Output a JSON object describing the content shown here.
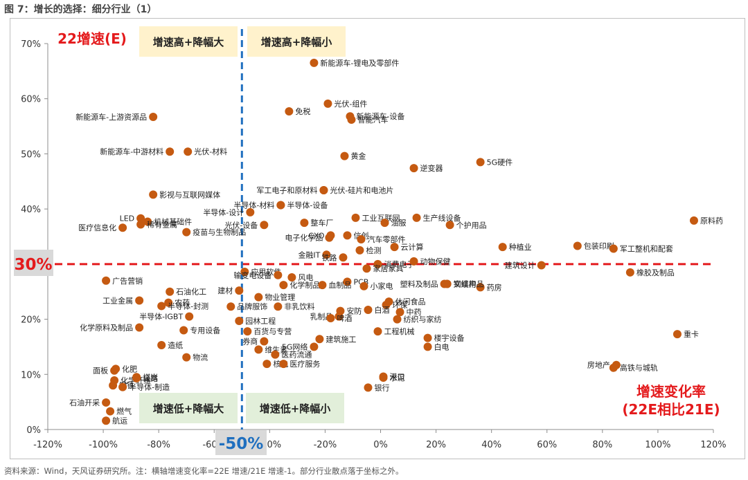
{
  "figure_title": "图 7：增长的选择：细分行业（1）",
  "footer": "资料来源：Wind，天风证券研究所。注：横轴增速变化率=22E 增速/21E 增速-1。部分行业散点落于坐标之外。",
  "colors": {
    "point": "#c55a11",
    "reference": "#e41a1c",
    "vline": "#1f6fbf",
    "yellow": "#fff2cc",
    "green": "#e2efda"
  },
  "chart_data": {
    "type": "scatter",
    "title": "增长的选择：细分行业（1）",
    "ylabel": "22增速(E)",
    "xlabel": "增速变化率",
    "xlabel_sub": "(22E相比21E)",
    "xlim": [
      -1.2,
      1.2
    ],
    "ylim": [
      0,
      0.7
    ],
    "x_ticks": [
      -1.2,
      -1.0,
      -0.8,
      -0.6,
      -0.4,
      -0.2,
      0,
      0.2,
      0.4,
      0.6,
      0.8,
      1.0,
      1.2
    ],
    "x_tick_labels": [
      "-120%",
      "-100%",
      "-80%",
      "-60%",
      "-40%",
      "-20%",
      "0%",
      "20%",
      "40%",
      "60%",
      "80%",
      "100%",
      "120%"
    ],
    "y_ticks": [
      0,
      0.1,
      0.2,
      0.3,
      0.4,
      0.5,
      0.6,
      0.7
    ],
    "y_tick_labels": [
      "0%",
      "10%",
      "20%",
      "30%",
      "40%",
      "50%",
      "60%",
      "70%"
    ],
    "hline": {
      "value": 0.3,
      "label": "30%"
    },
    "vline": {
      "value": -0.5,
      "label": "-50%"
    },
    "quadrants": {
      "top_left": "增速高+降幅大",
      "top_right": "增速高+降幅小",
      "bottom_left": "增速低+降幅大",
      "bottom_right": "增速低+降幅小"
    },
    "points": [
      {
        "name": "新能源车-锂电及零部件",
        "x": -0.24,
        "y": 0.665,
        "label_side": "right"
      },
      {
        "name": "光伏-组件",
        "x": -0.19,
        "y": 0.591,
        "label_side": "right"
      },
      {
        "name": "免税",
        "x": -0.33,
        "y": 0.577,
        "label_side": "right"
      },
      {
        "name": "新能源车-设备",
        "x": -0.11,
        "y": 0.568,
        "label_side": "right"
      },
      {
        "name": "智能汽车",
        "x": -0.105,
        "y": 0.562,
        "label_side": "right"
      },
      {
        "name": "新能源车-上游资源品",
        "x": -0.82,
        "y": 0.567,
        "label_side": "left"
      },
      {
        "name": "新能源车-中游材料",
        "x": -0.76,
        "y": 0.504,
        "label_side": "left"
      },
      {
        "name": "光伏-材料",
        "x": -0.695,
        "y": 0.504,
        "label_side": "right"
      },
      {
        "name": "黄金",
        "x": -0.13,
        "y": 0.496,
        "label_side": "right"
      },
      {
        "name": "5G硬件",
        "x": 0.36,
        "y": 0.485,
        "label_side": "right"
      },
      {
        "name": "逆变器",
        "x": 0.12,
        "y": 0.474,
        "label_side": "right"
      },
      {
        "name": "光伏-硅片和电池片",
        "x": -0.205,
        "y": 0.434,
        "label_side": "right"
      },
      {
        "name": "军工电子和原材料",
        "x": -0.205,
        "y": 0.434,
        "label_side": "left"
      },
      {
        "name": "影视与互联网媒体",
        "x": -0.82,
        "y": 0.426,
        "label_side": "right"
      },
      {
        "name": "半导体-材料",
        "x": -0.36,
        "y": 0.407,
        "label_side": "left"
      },
      {
        "name": "半导体-设备",
        "x": -0.36,
        "y": 0.407,
        "label_side": "right"
      },
      {
        "name": "半导体-设计",
        "x": -0.47,
        "y": 0.394,
        "label_side": "left"
      },
      {
        "name": "工业互联网",
        "x": -0.09,
        "y": 0.384,
        "label_side": "right"
      },
      {
        "name": "生产线设备",
        "x": 0.13,
        "y": 0.384,
        "label_side": "right"
      },
      {
        "name": "光伏-设备",
        "x": -0.42,
        "y": 0.371,
        "label_side": "left"
      },
      {
        "name": "整车厂",
        "x": -0.275,
        "y": 0.375,
        "label_side": "right"
      },
      {
        "name": "油服",
        "x": 0.015,
        "y": 0.375,
        "label_side": "right"
      },
      {
        "name": "个护用品",
        "x": 0.25,
        "y": 0.371,
        "label_side": "right"
      },
      {
        "name": "原料药",
        "x": 1.13,
        "y": 0.379,
        "label_side": "right"
      },
      {
        "name": "LED",
        "x": -0.865,
        "y": 0.383,
        "label_side": "left"
      },
      {
        "name": "机械基础件",
        "x": -0.84,
        "y": 0.377,
        "label_side": "right"
      },
      {
        "name": "医疗信息化",
        "x": -0.93,
        "y": 0.366,
        "label_side": "left"
      },
      {
        "name": "稀有金属",
        "x": -0.865,
        "y": 0.372,
        "label_side": "right"
      },
      {
        "name": "疫苗与生物制品",
        "x": -0.7,
        "y": 0.358,
        "label_side": "right"
      },
      {
        "name": "电子化学品",
        "x": -0.185,
        "y": 0.348,
        "label_side": "left"
      },
      {
        "name": "CXO",
        "x": -0.18,
        "y": 0.352,
        "label_side": "left"
      },
      {
        "name": "信创",
        "x": -0.12,
        "y": 0.352,
        "label_side": "right"
      },
      {
        "name": "汽车零部件",
        "x": -0.07,
        "y": 0.345,
        "label_side": "right"
      },
      {
        "name": "云计算",
        "x": 0.05,
        "y": 0.331,
        "label_side": "right"
      },
      {
        "name": "包装印刷",
        "x": 0.71,
        "y": 0.333,
        "label_side": "right"
      },
      {
        "name": "种植业",
        "x": 0.44,
        "y": 0.331,
        "label_side": "right"
      },
      {
        "name": "军工整机和配套",
        "x": 0.84,
        "y": 0.328,
        "label_side": "right"
      },
      {
        "name": "建筑设计",
        "x": 0.58,
        "y": 0.298,
        "label_side": "left"
      },
      {
        "name": "检测",
        "x": -0.075,
        "y": 0.325,
        "label_side": "right"
      },
      {
        "name": "金融IT",
        "x": -0.195,
        "y": 0.317,
        "label_side": "left"
      },
      {
        "name": "铁路",
        "x": -0.135,
        "y": 0.312,
        "label_side": "left"
      },
      {
        "name": "应用软件",
        "x": -0.49,
        "y": 0.286,
        "label_side": "right"
      },
      {
        "name": "消费电子",
        "x": -0.01,
        "y": 0.3,
        "label_side": "right"
      },
      {
        "name": "动物保健",
        "x": 0.12,
        "y": 0.305,
        "label_side": "right"
      },
      {
        "name": "输变电设备",
        "x": -0.37,
        "y": 0.28,
        "label_side": "left"
      },
      {
        "name": "家居家具",
        "x": -0.05,
        "y": 0.292,
        "label_side": "right"
      },
      {
        "name": "橡胶及制品",
        "x": 0.9,
        "y": 0.285,
        "label_side": "right"
      },
      {
        "name": "风电",
        "x": -0.32,
        "y": 0.276,
        "label_side": "right"
      },
      {
        "name": "PCB",
        "x": -0.12,
        "y": 0.268,
        "label_side": "right"
      },
      {
        "name": "塑料及制品",
        "x": 0.23,
        "y": 0.264,
        "label_side": "left"
      },
      {
        "name": "钢结构",
        "x": 0.24,
        "y": 0.264,
        "label_side": "right"
      },
      {
        "name": "广告营销",
        "x": -0.99,
        "y": 0.27,
        "label_side": "right"
      },
      {
        "name": "石油化工",
        "x": -0.76,
        "y": 0.25,
        "label_side": "right"
      },
      {
        "name": "化学制品",
        "x": -0.35,
        "y": 0.262,
        "label_side": "right"
      },
      {
        "name": "血制品",
        "x": -0.21,
        "y": 0.262,
        "label_side": "right"
      },
      {
        "name": "小家电",
        "x": -0.06,
        "y": 0.26,
        "label_side": "right"
      },
      {
        "name": "药房",
        "x": 0.36,
        "y": 0.258,
        "label_side": "right"
      },
      {
        "name": "建材",
        "x": -0.51,
        "y": 0.252,
        "label_side": "left"
      },
      {
        "name": "物业管理",
        "x": -0.44,
        "y": 0.24,
        "label_side": "right"
      },
      {
        "name": "农药",
        "x": -0.765,
        "y": 0.23,
        "label_side": "right"
      },
      {
        "name": "工业金属",
        "x": -0.87,
        "y": 0.234,
        "label_side": "left"
      },
      {
        "name": "休闲食品",
        "x": 0.03,
        "y": 0.232,
        "label_side": "right"
      },
      {
        "name": "文娱用品",
        "x": 0.24,
        "y": 0.264,
        "label_side": "right"
      },
      {
        "name": "半导体-封测",
        "x": -0.79,
        "y": 0.224,
        "label_side": "right"
      },
      {
        "name": "品牌服饰",
        "x": -0.54,
        "y": 0.223,
        "label_side": "right"
      },
      {
        "name": "非乳饮料",
        "x": -0.37,
        "y": 0.223,
        "label_side": "right"
      },
      {
        "name": "安防",
        "x": -0.145,
        "y": 0.215,
        "label_side": "right"
      },
      {
        "name": "环保",
        "x": 0.02,
        "y": 0.226,
        "label_side": "right"
      },
      {
        "name": "中药",
        "x": 0.07,
        "y": 0.213,
        "label_side": "right"
      },
      {
        "name": "半导体-IGBT",
        "x": -0.69,
        "y": 0.205,
        "label_side": "left"
      },
      {
        "name": "乳制品",
        "x": -0.15,
        "y": 0.205,
        "label_side": "left"
      },
      {
        "name": "园林工程",
        "x": -0.51,
        "y": 0.197,
        "label_side": "right"
      },
      {
        "name": "白酒",
        "x": -0.045,
        "y": 0.217,
        "label_side": "right"
      },
      {
        "name": "纺织与家纺",
        "x": 0.06,
        "y": 0.2,
        "label_side": "right"
      },
      {
        "name": "啤酒",
        "x": -0.18,
        "y": 0.202,
        "label_side": "right"
      },
      {
        "name": "化学原料及制品",
        "x": -0.87,
        "y": 0.185,
        "label_side": "left"
      },
      {
        "name": "专用设备",
        "x": -0.71,
        "y": 0.18,
        "label_side": "right"
      },
      {
        "name": "百货与专营",
        "x": -0.48,
        "y": 0.178,
        "label_side": "right"
      },
      {
        "name": "工程机械",
        "x": -0.01,
        "y": 0.178,
        "label_side": "right"
      },
      {
        "name": "重卡",
        "x": 1.07,
        "y": 0.173,
        "label_side": "right"
      },
      {
        "name": "楼宇设备",
        "x": 0.17,
        "y": 0.166,
        "label_side": "right"
      },
      {
        "name": "建筑施工",
        "x": -0.22,
        "y": 0.164,
        "label_side": "right"
      },
      {
        "name": "券商",
        "x": -0.42,
        "y": 0.16,
        "label_side": "left"
      },
      {
        "name": "造纸",
        "x": -0.79,
        "y": 0.153,
        "label_side": "right"
      },
      {
        "name": "白电",
        "x": 0.17,
        "y": 0.15,
        "label_side": "right"
      },
      {
        "name": "5G网络",
        "x": -0.24,
        "y": 0.15,
        "label_side": "left"
      },
      {
        "name": "维生素",
        "x": -0.44,
        "y": 0.145,
        "label_side": "right"
      },
      {
        "name": "高铁与城轨",
        "x": 0.84,
        "y": 0.112,
        "label_side": "right"
      },
      {
        "name": "医药流通",
        "x": -0.38,
        "y": 0.136,
        "label_side": "right"
      },
      {
        "name": "物流",
        "x": -0.7,
        "y": 0.131,
        "label_side": "right"
      },
      {
        "name": "面板",
        "x": -0.96,
        "y": 0.107,
        "label_side": "left"
      },
      {
        "name": "化肥",
        "x": -0.955,
        "y": 0.11,
        "label_side": "right"
      },
      {
        "name": "煤炭",
        "x": -0.88,
        "y": 0.095,
        "label_side": "right"
      },
      {
        "name": "核电",
        "x": -0.41,
        "y": 0.119,
        "label_side": "right"
      },
      {
        "name": "医疗服务",
        "x": -0.35,
        "y": 0.119,
        "label_side": "right"
      },
      {
        "name": "港口",
        "x": 0.01,
        "y": 0.096,
        "label_side": "right"
      },
      {
        "name": "房地产",
        "x": 0.85,
        "y": 0.117,
        "label_side": "left"
      },
      {
        "name": "化学纤维",
        "x": -0.96,
        "y": 0.089,
        "label_side": "right"
      },
      {
        "name": "公路",
        "x": -0.88,
        "y": 0.093,
        "label_side": "right"
      },
      {
        "name": "钢铁",
        "x": -0.965,
        "y": 0.08,
        "label_side": "right"
      },
      {
        "name": "半导体-制造",
        "x": -0.93,
        "y": 0.077,
        "label_side": "right"
      },
      {
        "name": "水泥",
        "x": 0.01,
        "y": 0.094,
        "label_side": "right"
      },
      {
        "name": "银行",
        "x": -0.045,
        "y": 0.076,
        "label_side": "right"
      },
      {
        "name": "石油开采",
        "x": -0.99,
        "y": 0.049,
        "label_side": "left"
      },
      {
        "name": "燃气",
        "x": -0.975,
        "y": 0.033,
        "label_side": "right"
      },
      {
        "name": "航运",
        "x": -0.99,
        "y": 0.016,
        "label_side": "right"
      }
    ]
  }
}
